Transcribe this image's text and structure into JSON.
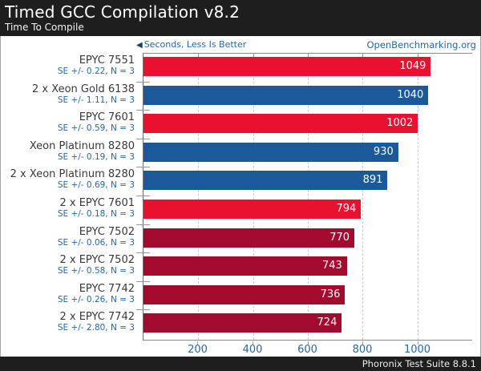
{
  "header": {
    "title": "Timed GCC Compilation v8.2",
    "subtitle": "Time To Compile",
    "bg_color": "#1e1e1e"
  },
  "meta": {
    "arrow_icon": "◀",
    "axis_hint": "Seconds, Less Is Better",
    "site": "OpenBenchmarking.org",
    "link_color": "#2767a4"
  },
  "footer": {
    "text": "Phoronix Test Suite 8.8.1"
  },
  "chart_data": {
    "type": "bar",
    "orientation": "horizontal",
    "title": "Timed GCC Compilation v8.2",
    "subtitle": "Time To Compile",
    "xlabel": "Seconds, Less Is Better",
    "xlim": [
      0,
      1200
    ],
    "xticks": [
      200,
      400,
      600,
      800,
      1000
    ],
    "grid": "dashed-vertical",
    "legend": "none",
    "colors": {
      "epyc_naples_red": "#e9112f",
      "xeon_blue": "#1a5a9b",
      "epyc_rome_dark_red": "#a20b2e"
    },
    "rows": [
      {
        "label": "EPYC 7551",
        "se": "SE +/- 0.22, N = 3",
        "value": 1049,
        "color": "#e9112f"
      },
      {
        "label": "2 x Xeon Gold 6138",
        "se": "SE +/- 1.11, N = 3",
        "value": 1040,
        "color": "#1a5a9b"
      },
      {
        "label": "EPYC 7601",
        "se": "SE +/- 0.59, N = 3",
        "value": 1002,
        "color": "#e9112f"
      },
      {
        "label": "Xeon Platinum 8280",
        "se": "SE +/- 0.19, N = 3",
        "value": 930,
        "color": "#1a5a9b"
      },
      {
        "label": "2 x Xeon Platinum 8280",
        "se": "SE +/- 0.69, N = 3",
        "value": 891,
        "color": "#1a5a9b"
      },
      {
        "label": "2 x EPYC 7601",
        "se": "SE +/- 0.18, N = 3",
        "value": 794,
        "color": "#e9112f"
      },
      {
        "label": "EPYC 7502",
        "se": "SE +/- 0.06, N = 3",
        "value": 770,
        "color": "#a20b2e"
      },
      {
        "label": "2 x EPYC 7502",
        "se": "SE +/- 0.58, N = 3",
        "value": 743,
        "color": "#a20b2e"
      },
      {
        "label": "EPYC 7742",
        "se": "SE +/- 0.26, N = 3",
        "value": 736,
        "color": "#a20b2e"
      },
      {
        "label": "2 x EPYC 7742",
        "se": "SE +/- 2.80, N = 3",
        "value": 724,
        "color": "#a20b2e"
      }
    ]
  }
}
